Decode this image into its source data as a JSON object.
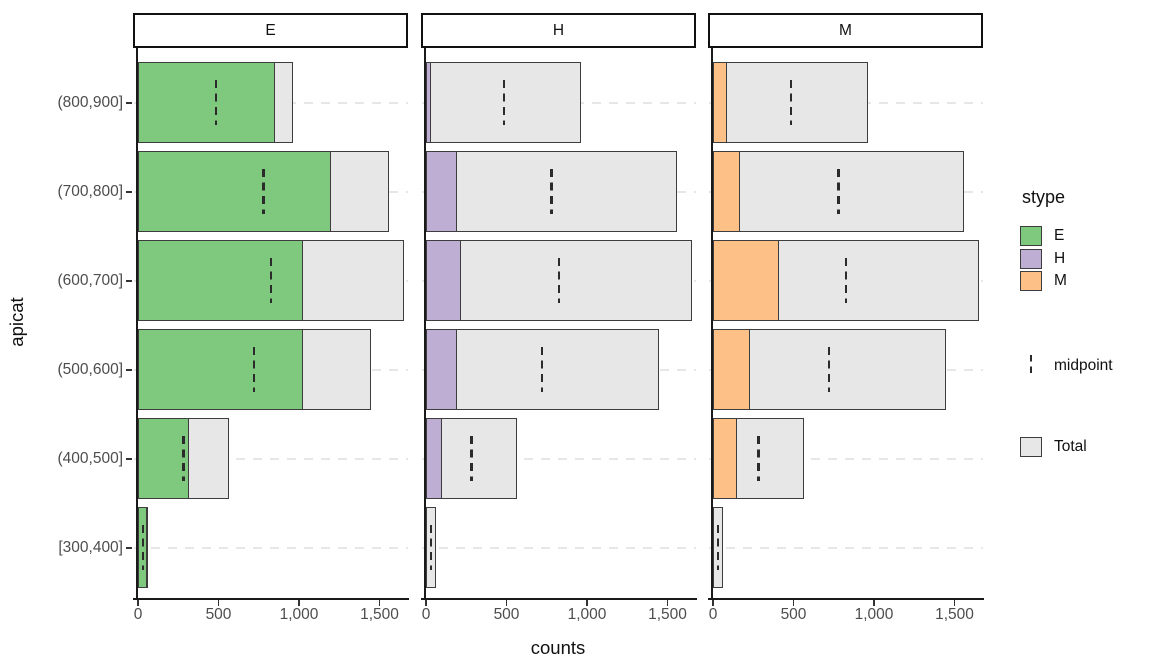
{
  "chart_data": {
    "type": "bar",
    "orientation": "horizontal",
    "xlabel": "counts",
    "ylabel": "apicat",
    "facets": [
      "E",
      "H",
      "M"
    ],
    "categories": [
      "(800,900]",
      "(700,800]",
      "(600,700]",
      "(500,600]",
      "(400,500]",
      "[300,400]"
    ],
    "series": [
      {
        "name": "E",
        "facet": "E",
        "values": [
          850,
          1200,
          1025,
          1025,
          315,
          55
        ]
      },
      {
        "name": "H",
        "facet": "H",
        "values": [
          30,
          190,
          220,
          190,
          100,
          3
        ]
      },
      {
        "name": "M",
        "facet": "M",
        "values": [
          85,
          170,
          410,
          230,
          150,
          2
        ]
      }
    ],
    "totals": [
      965,
      1560,
      1655,
      1445,
      565,
      60
    ],
    "midpoints": [
      483,
      780,
      828,
      723,
      283,
      30
    ],
    "x_ticks": [
      0,
      500,
      1000,
      1500
    ],
    "x_tick_labels": [
      "0",
      "500",
      "1,000",
      "1,500"
    ],
    "xlim": [
      0,
      1680
    ],
    "grid": "dashed-horizontal-major-y",
    "legend": {
      "position": "right",
      "title": "stype",
      "fill_entries": [
        {
          "key": "E",
          "label": "E"
        },
        {
          "key": "H",
          "label": "H"
        },
        {
          "key": "M",
          "label": "M"
        }
      ],
      "midpoint_label": "midpoint",
      "total_label": "Total"
    },
    "colors": {
      "E": "#7FC97F",
      "H": "#BEAED4",
      "M": "#FDC086",
      "total": "#E7E7E7",
      "gridline": "#E7E7E7",
      "axis_text": "#4D4D4D"
    }
  }
}
